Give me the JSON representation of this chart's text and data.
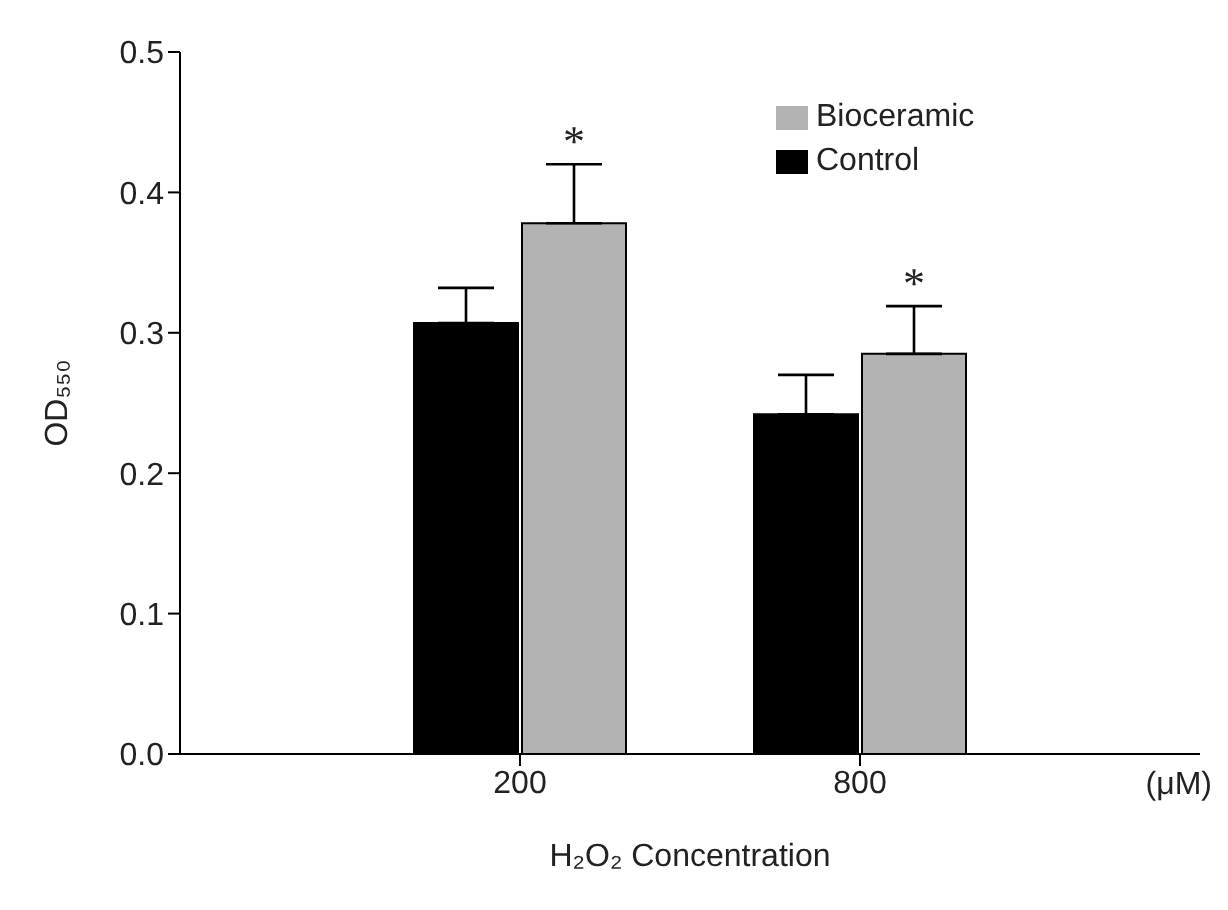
{
  "chart_data": {
    "type": "bar",
    "xlabel": "H₂O₂ Concentration",
    "ylabel": "OD₅₅₀",
    "categories": [
      "200",
      "800"
    ],
    "series": [
      {
        "name": "Control",
        "color": "#000000",
        "values": [
          0.307,
          0.242
        ],
        "errors": [
          [
            0.307,
            0.332
          ],
          [
            0.242,
            0.27
          ]
        ]
      },
      {
        "name": "Bioceramic",
        "color": "#b3b3b3",
        "values": [
          0.378,
          0.285
        ],
        "errors": [
          [
            0.378,
            0.42
          ],
          [
            0.285,
            0.319
          ]
        ]
      }
    ],
    "ylim": [
      0,
      0.5
    ],
    "yticks": [
      {
        "value": 0,
        "label": "0.0"
      },
      {
        "value": 0.1,
        "label": "0.1"
      },
      {
        "value": 0.2,
        "label": "0.2"
      },
      {
        "value": 0.3,
        "label": "0.3"
      },
      {
        "value": 0.4,
        "label": "0.4"
      },
      {
        "value": 0.5,
        "label": "0.5"
      }
    ],
    "legend": "top right",
    "annotations": [
      "*",
      "*",
      "(μM)"
    ]
  }
}
